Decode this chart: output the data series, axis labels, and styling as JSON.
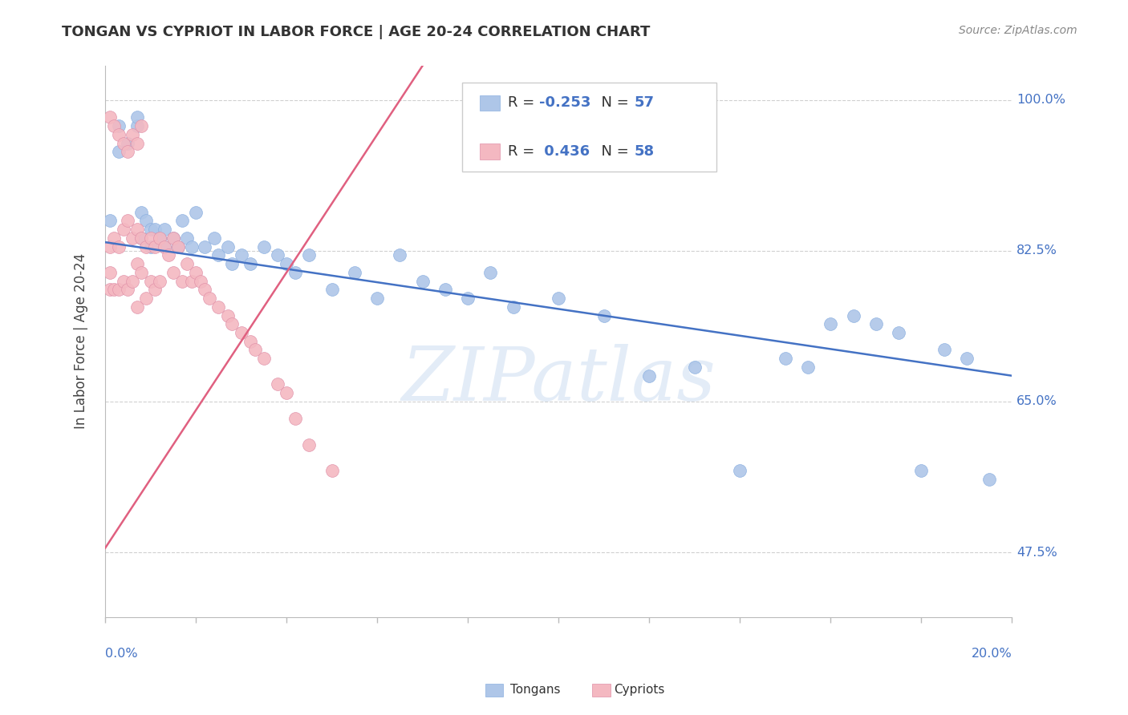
{
  "title": "TONGAN VS CYPRIOT IN LABOR FORCE | AGE 20-24 CORRELATION CHART",
  "source": "Source: ZipAtlas.com",
  "ylabel": "In Labor Force | Age 20-24",
  "tongan_color": "#aec6e8",
  "cypriot_color": "#f4b8c1",
  "tongan_line_color": "#4472c4",
  "cypriot_line_color": "#e06080",
  "background_color": "#ffffff",
  "grid_color": "#d0d0d0",
  "xmin": 0.0,
  "xmax": 0.2,
  "ymin": 0.4,
  "ymax": 1.04,
  "yticks": [
    0.475,
    0.65,
    0.825,
    1.0
  ],
  "yticklabels": [
    "47.5%",
    "65.0%",
    "82.5%",
    "100.0%"
  ],
  "tongan_line": [
    0.0,
    0.835,
    0.2,
    0.68
  ],
  "cypriot_line": [
    0.0,
    0.48,
    0.07,
    1.04
  ],
  "tongans_x": [
    0.001,
    0.003,
    0.003,
    0.005,
    0.007,
    0.007,
    0.008,
    0.008,
    0.009,
    0.01,
    0.01,
    0.011,
    0.012,
    0.013,
    0.013,
    0.015,
    0.016,
    0.017,
    0.018,
    0.019,
    0.02,
    0.022,
    0.024,
    0.025,
    0.027,
    0.028,
    0.03,
    0.032,
    0.035,
    0.038,
    0.04,
    0.042,
    0.045,
    0.05,
    0.055,
    0.06,
    0.065,
    0.07,
    0.075,
    0.08,
    0.085,
    0.09,
    0.1,
    0.11,
    0.12,
    0.13,
    0.14,
    0.15,
    0.155,
    0.16,
    0.165,
    0.17,
    0.175,
    0.18,
    0.185,
    0.19,
    0.195
  ],
  "tongans_y": [
    0.86,
    0.97,
    0.94,
    0.95,
    0.97,
    0.98,
    0.84,
    0.87,
    0.86,
    0.85,
    0.83,
    0.85,
    0.84,
    0.83,
    0.85,
    0.84,
    0.83,
    0.86,
    0.84,
    0.83,
    0.87,
    0.83,
    0.84,
    0.82,
    0.83,
    0.81,
    0.82,
    0.81,
    0.83,
    0.82,
    0.81,
    0.8,
    0.82,
    0.78,
    0.8,
    0.77,
    0.82,
    0.79,
    0.78,
    0.77,
    0.8,
    0.76,
    0.77,
    0.75,
    0.68,
    0.69,
    0.57,
    0.7,
    0.69,
    0.74,
    0.75,
    0.74,
    0.73,
    0.57,
    0.71,
    0.7,
    0.56
  ],
  "cypriots_x": [
    0.001,
    0.001,
    0.001,
    0.001,
    0.002,
    0.002,
    0.002,
    0.003,
    0.003,
    0.003,
    0.004,
    0.004,
    0.004,
    0.005,
    0.005,
    0.005,
    0.006,
    0.006,
    0.006,
    0.007,
    0.007,
    0.007,
    0.007,
    0.008,
    0.008,
    0.008,
    0.009,
    0.009,
    0.01,
    0.01,
    0.011,
    0.011,
    0.012,
    0.012,
    0.013,
    0.014,
    0.015,
    0.015,
    0.016,
    0.017,
    0.018,
    0.019,
    0.02,
    0.021,
    0.022,
    0.023,
    0.025,
    0.027,
    0.028,
    0.03,
    0.032,
    0.033,
    0.035,
    0.038,
    0.04,
    0.042,
    0.045,
    0.05
  ],
  "cypriots_y": [
    0.98,
    0.83,
    0.8,
    0.78,
    0.97,
    0.84,
    0.78,
    0.96,
    0.83,
    0.78,
    0.95,
    0.85,
    0.79,
    0.94,
    0.86,
    0.78,
    0.96,
    0.84,
    0.79,
    0.95,
    0.85,
    0.81,
    0.76,
    0.97,
    0.84,
    0.8,
    0.83,
    0.77,
    0.84,
    0.79,
    0.83,
    0.78,
    0.84,
    0.79,
    0.83,
    0.82,
    0.84,
    0.8,
    0.83,
    0.79,
    0.81,
    0.79,
    0.8,
    0.79,
    0.78,
    0.77,
    0.76,
    0.75,
    0.74,
    0.73,
    0.72,
    0.71,
    0.7,
    0.67,
    0.66,
    0.63,
    0.6,
    0.57
  ],
  "watermark_text": "ZIPatlas",
  "watermark_color": "#c8daf0",
  "watermark_alpha": 0.5
}
